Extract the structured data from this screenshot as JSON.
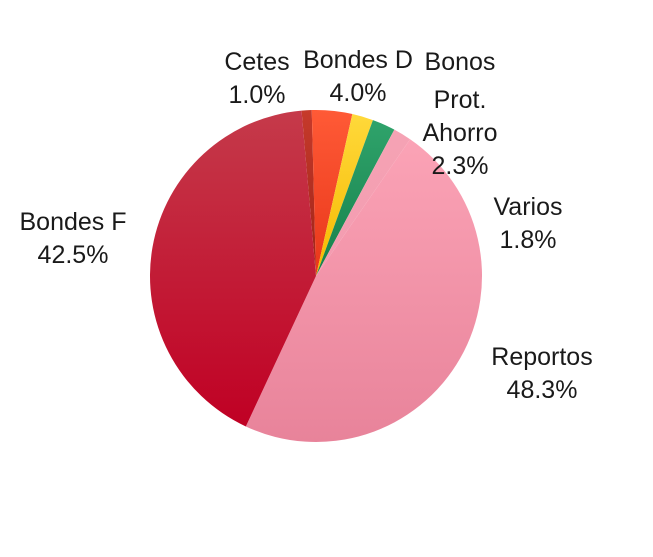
{
  "chart_data": {
    "type": "pie",
    "title": "",
    "start_angle_deg": -5,
    "slices": [
      {
        "label": "Cetes",
        "label_lines": [
          "Cetes",
          "1.0%"
        ],
        "value": 1.0,
        "color": "#c63a2b",
        "color2": "#9e2317"
      },
      {
        "label": "Bondes D",
        "label_lines": [
          "Bondes D",
          "4.0%"
        ],
        "value": 4.0,
        "color": "#ff5a36",
        "color2": "#e8361a"
      },
      {
        "label": "Bonos",
        "label_lines": [],
        "value": 2.1,
        "color": "#ffd93a",
        "color2": "#f5b800"
      },
      {
        "label": "Prot. Ahorro",
        "label_lines": [
          "Prot.",
          "Ahorro",
          "2.3%"
        ],
        "value": 2.3,
        "color": "#2fa36b",
        "color2": "#16804b"
      },
      {
        "label": "Varios",
        "label_lines": [
          "Varios",
          "1.8%"
        ],
        "value": 1.8,
        "color": "#f5a3b4",
        "color2": "#f49bb0"
      },
      {
        "label": "Reportos",
        "label_lines": [
          "Reportos",
          "48.3%"
        ],
        "value": 48.3,
        "color": "#fba3b6",
        "color2": "#e8839a"
      },
      {
        "label": "Bondes F",
        "label_lines": [
          "Bondes F",
          "42.5%"
        ],
        "value": 42.5,
        "color": "#c53a4a",
        "color2": "#c00024"
      }
    ],
    "extra_labels": [
      {
        "name": "bonos-label",
        "lines": [
          "Bonos"
        ]
      }
    ]
  }
}
